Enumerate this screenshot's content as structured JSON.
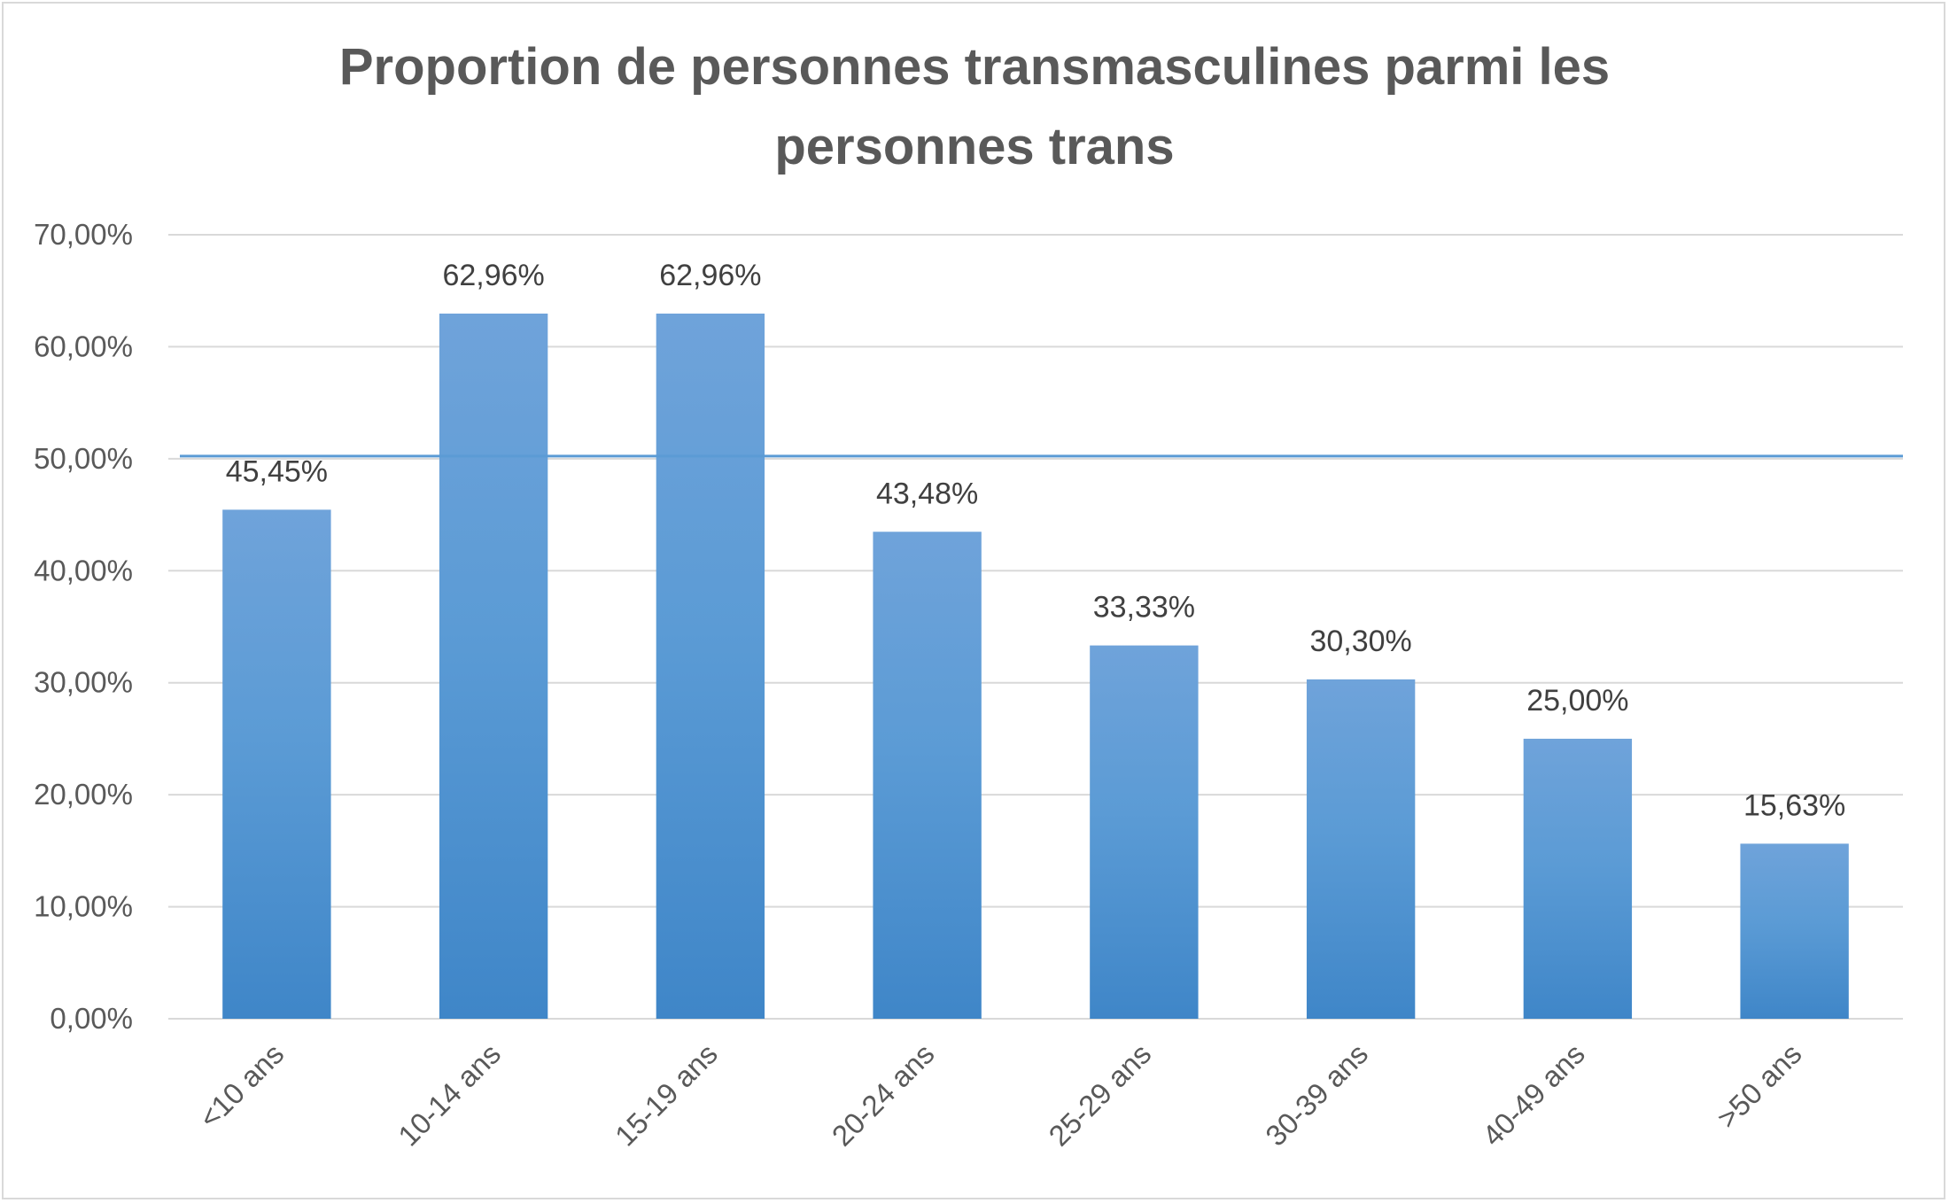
{
  "chart_data": {
    "type": "bar",
    "title": "Proportion de personnes transmasculines parmi les personnes trans",
    "title_lines": [
      "Proportion de personnes transmasculines parmi les",
      "personnes trans"
    ],
    "categories": [
      "<10 ans",
      "10-14 ans",
      "15-19 ans",
      "20-24 ans",
      "25-29 ans",
      "30-39 ans",
      "40-49 ans",
      ">50 ans"
    ],
    "values": [
      45.45,
      62.96,
      62.96,
      43.48,
      33.33,
      30.3,
      25.0,
      15.63
    ],
    "data_labels": [
      "45,45%",
      "62,96%",
      "62,96%",
      "43,48%",
      "33,33%",
      "30,30%",
      "25,00%",
      "15,63%"
    ],
    "y_ticks": [
      0,
      10,
      20,
      30,
      40,
      50,
      60,
      70
    ],
    "y_tick_labels": [
      "0,00%",
      "10,00%",
      "20,00%",
      "30,00%",
      "40,00%",
      "50,00%",
      "60,00%",
      "70,00%"
    ],
    "ylim": [
      0,
      70
    ],
    "reference_line": 50,
    "grid": true,
    "legend": "none",
    "colors": {
      "bar_top": "#6fa3da",
      "bar_bottom": "#3f86c8",
      "reference_line": "#5b9bd5",
      "grid": "#d9d9d9"
    }
  }
}
